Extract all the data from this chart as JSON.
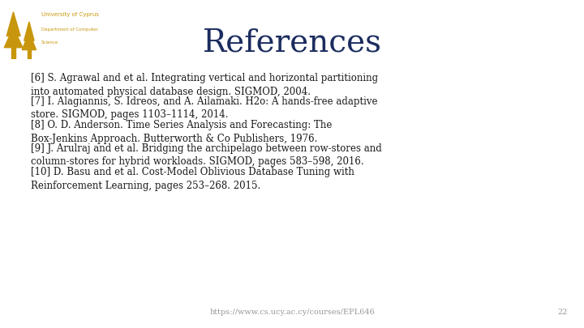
{
  "title": "References",
  "title_color": "#1B2C5E",
  "title_fontsize": 28,
  "background_color": "#FFFFFF",
  "references": [
    "[6] S. Agrawal and et al. Integrating vertical and horizontal partitioning\ninto automated physical database design. SIGMOD, 2004.",
    "[7] I. Alagiannis, S. Idreos, and A. Ailamaki. H2o: A hands-free adaptive\nstore. SIGMOD, pages 1103–1114, 2014.",
    "[8] O. D. Anderson. Time Series Analysis and Forecasting: The\nBox-Jenkins Approach. Butterworth & Co Publishers, 1976.",
    "[9] J. Arulraj and et al. Bridging the archipelago between row-stores and\ncolumn-stores for hybrid workloads. SIGMOD, pages 583–598, 2016.",
    "[10] D. Basu and et al. Cost-Model Oblivious Database Tuning with\nReinforcement Learning, pages 253–268. 2015."
  ],
  "ref_color": "#1a1a1a",
  "ref_fontsize": 8.5,
  "footer_url": "https://www.cs.ucy.ac.cy/courses/EPL646",
  "footer_page": "22",
  "footer_color": "#999999",
  "footer_fontsize": 7,
  "logo_text_line1": "University of Cyprus",
  "logo_text_line2": "Department of Computer",
  "logo_text_line3": "Science",
  "logo_color": "#C8960C",
  "logo_text_color": "#C8960C",
  "logo_fontsize1": 5.0,
  "logo_fontsize2": 4.0
}
